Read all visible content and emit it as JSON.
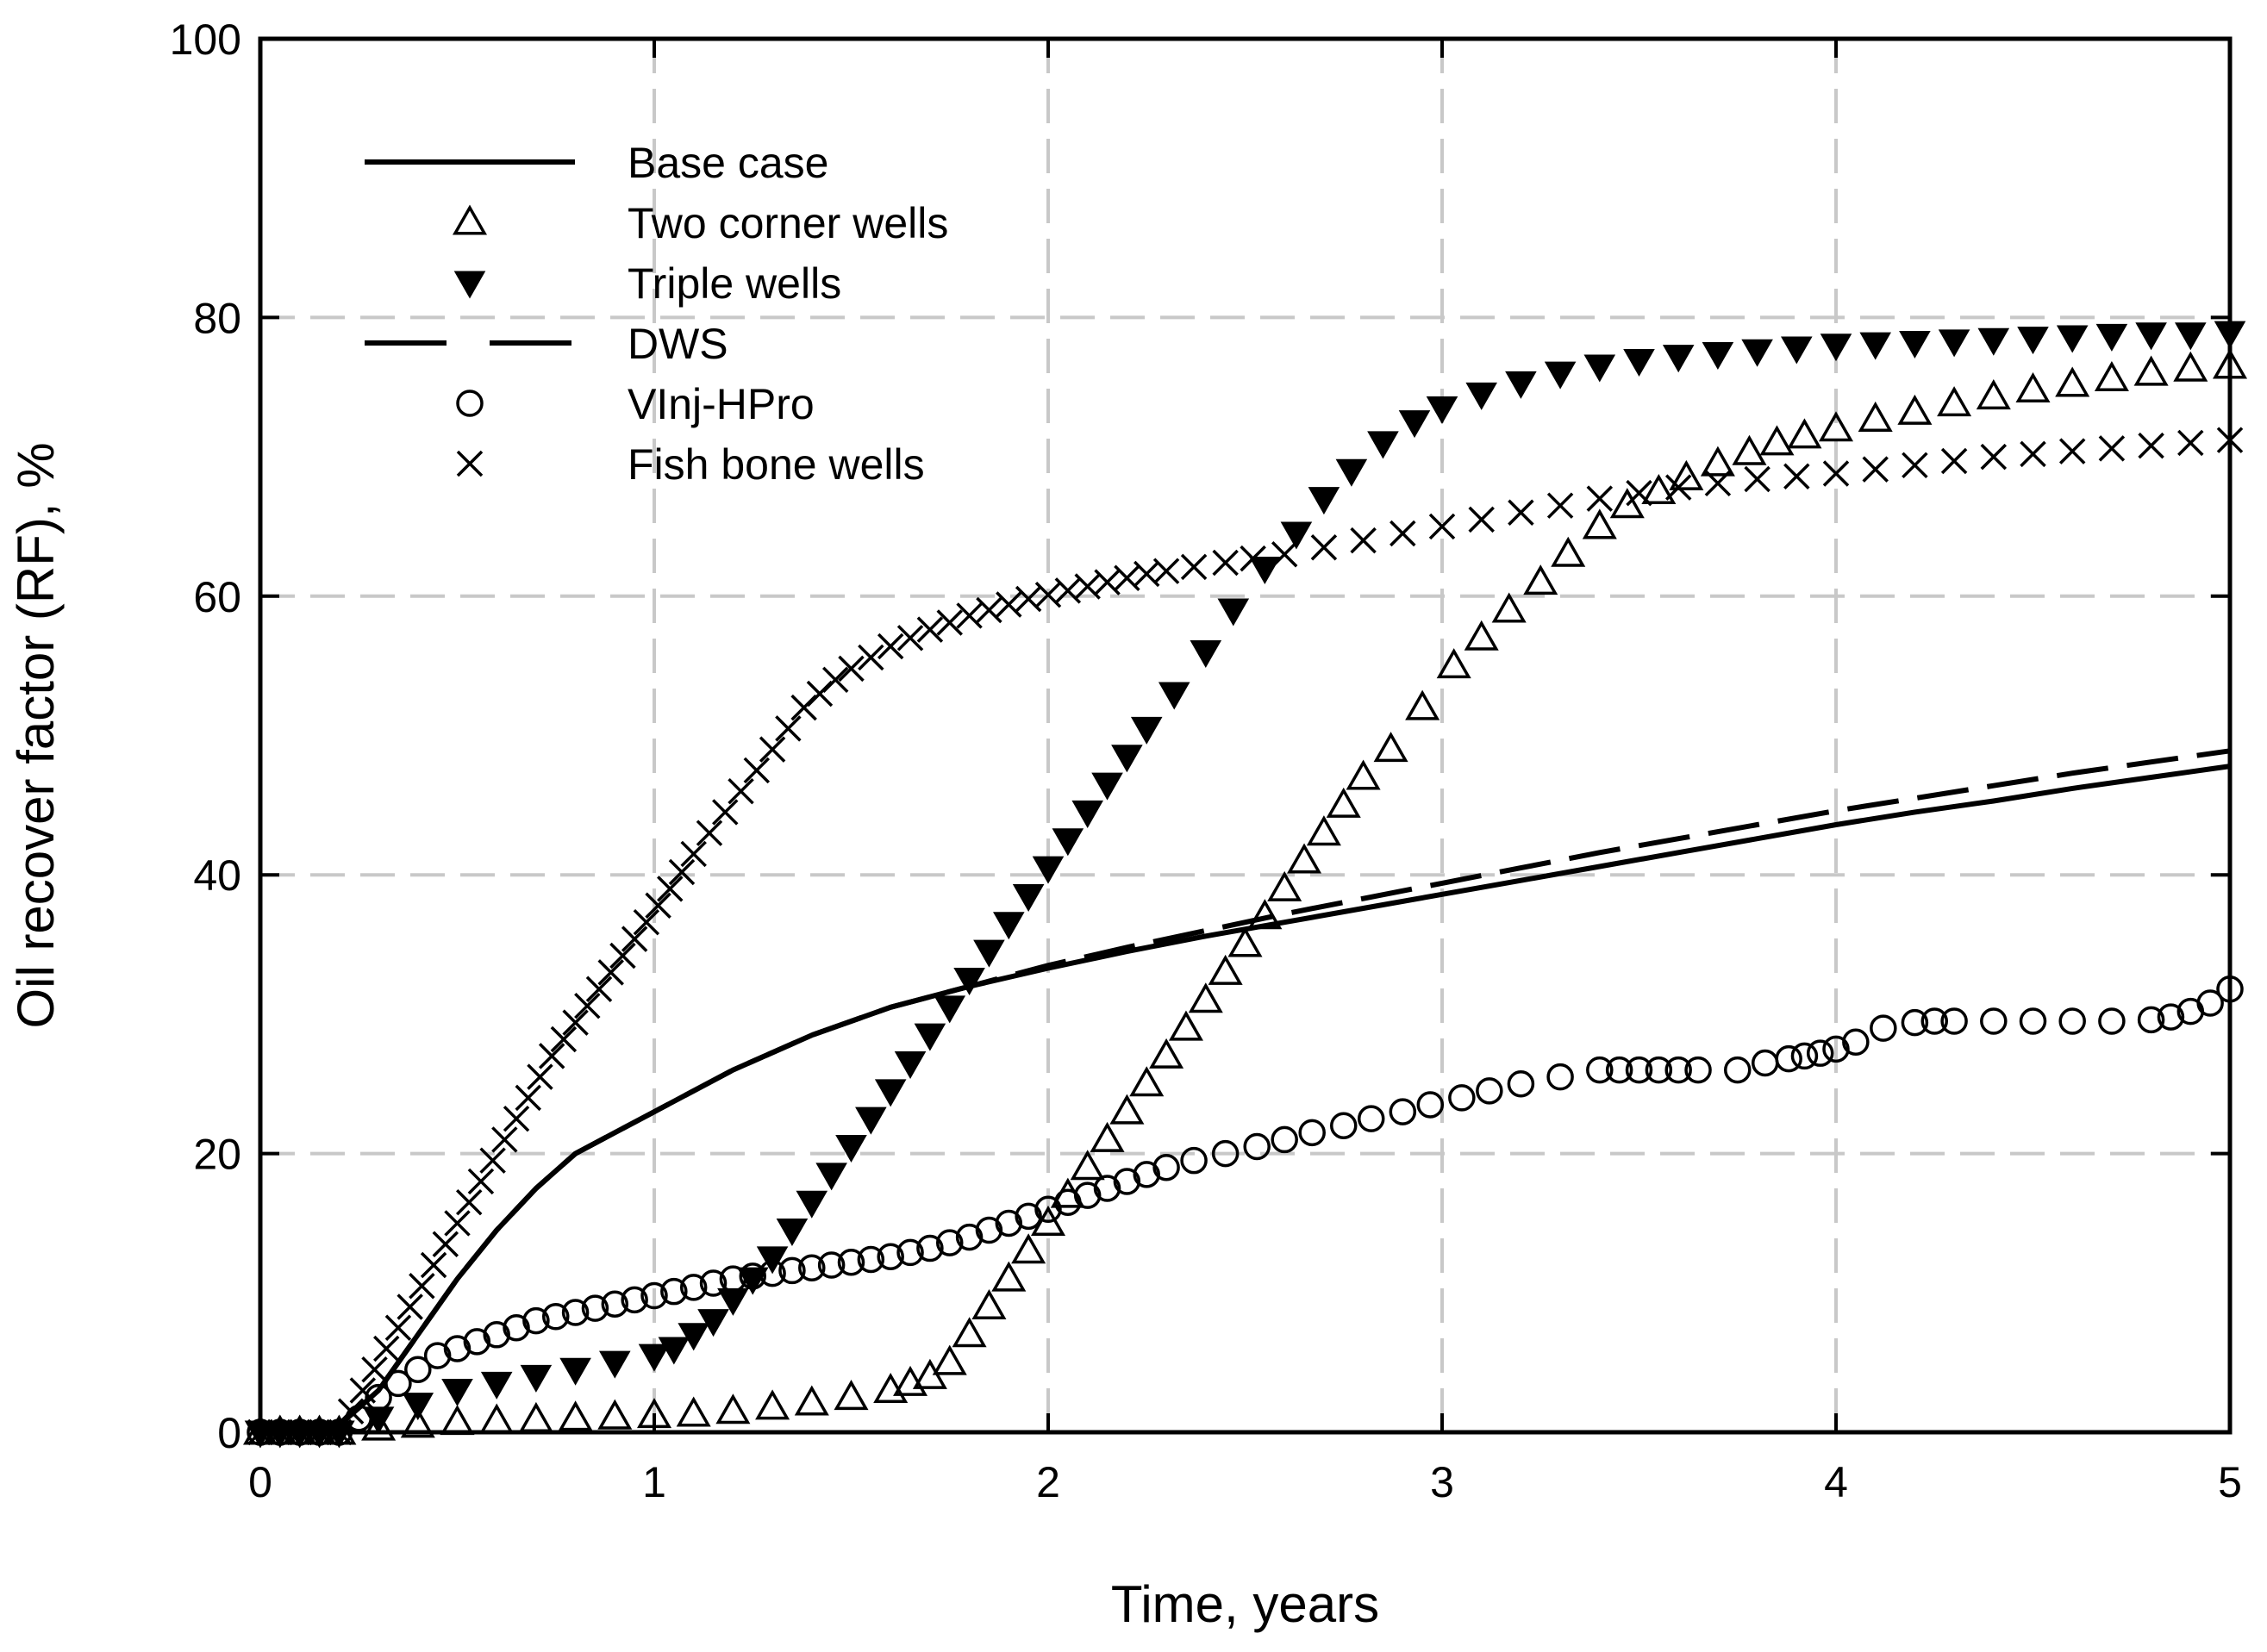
{
  "chart_data": {
    "type": "line",
    "title": "",
    "xlabel": "Time, years",
    "ylabel": "Oil recover factor (RF), %",
    "xlim": [
      0,
      5
    ],
    "ylim": [
      0,
      100
    ],
    "xticks": [
      "0",
      "1",
      "2",
      "3",
      "4",
      "5"
    ],
    "yticks": [
      "0",
      "20",
      "40",
      "60",
      "80",
      "100"
    ],
    "grid": true,
    "legend_position": "top-left",
    "colors": {
      "line": "#000000",
      "grid": "#c8c8c8",
      "background": "#ffffff"
    },
    "series": [
      {
        "name": "Base case",
        "style": "solid",
        "marker": "none",
        "x": [
          0,
          0.1,
          0.2,
          0.3,
          0.4,
          0.5,
          0.6,
          0.7,
          0.8,
          0.9,
          1.0,
          1.2,
          1.4,
          1.6,
          1.8,
          2.0,
          2.2,
          2.4,
          2.6,
          2.8,
          3.0,
          3.2,
          3.4,
          3.6,
          3.8,
          4.0,
          4.2,
          4.4,
          4.6,
          4.8,
          5.0
        ],
        "y": [
          0,
          0,
          0.5,
          3,
          7,
          11,
          14.5,
          17.5,
          20,
          21.5,
          23,
          26,
          28.5,
          30.5,
          32,
          33.3,
          34.5,
          35.6,
          36.6,
          37.6,
          38.6,
          39.6,
          40.6,
          41.6,
          42.6,
          43.6,
          44.5,
          45.3,
          46.2,
          47,
          47.8
        ]
      },
      {
        "name": "Two corner wells",
        "style": "markers",
        "marker": "triangle-open",
        "x": [
          0,
          0.05,
          0.1,
          0.15,
          0.2,
          0.3,
          0.4,
          0.5,
          0.6,
          0.7,
          0.8,
          0.9,
          1.0,
          1.1,
          1.2,
          1.3,
          1.4,
          1.5,
          1.6,
          1.65,
          1.7,
          1.75,
          1.8,
          1.85,
          1.9,
          1.95,
          2.0,
          2.05,
          2.1,
          2.15,
          2.2,
          2.25,
          2.3,
          2.35,
          2.4,
          2.45,
          2.5,
          2.55,
          2.6,
          2.65,
          2.7,
          2.75,
          2.8,
          2.87,
          2.95,
          3.03,
          3.1,
          3.17,
          3.25,
          3.32,
          3.4,
          3.47,
          3.55,
          3.62,
          3.7,
          3.78,
          3.85,
          3.92,
          4.0,
          4.1,
          4.2,
          4.3,
          4.4,
          4.5,
          4.6,
          4.7,
          4.8,
          4.9,
          5.0
        ],
        "y": [
          0,
          0,
          0,
          0,
          0,
          0.3,
          0.5,
          0.7,
          0.8,
          0.9,
          1.0,
          1.1,
          1.2,
          1.3,
          1.5,
          1.8,
          2.1,
          2.5,
          3,
          3.5,
          4,
          5,
          7,
          9,
          11,
          13,
          15,
          17,
          19,
          21,
          23,
          25,
          27,
          29,
          31,
          33,
          35,
          37,
          39,
          41,
          43,
          45,
          47,
          49,
          52,
          55,
          57,
          59,
          61,
          63,
          65,
          66.5,
          67.5,
          68.5,
          69.5,
          70.3,
          71,
          71.5,
          72,
          72.7,
          73.2,
          73.8,
          74.3,
          74.8,
          75.2,
          75.6,
          76,
          76.3,
          76.5
        ]
      },
      {
        "name": "Triple wells",
        "style": "markers",
        "marker": "triangle-down-filled",
        "x": [
          0,
          0.05,
          0.1,
          0.15,
          0.2,
          0.3,
          0.4,
          0.5,
          0.6,
          0.7,
          0.8,
          0.9,
          1.0,
          1.05,
          1.1,
          1.15,
          1.2,
          1.25,
          1.3,
          1.35,
          1.4,
          1.45,
          1.5,
          1.55,
          1.6,
          1.65,
          1.7,
          1.75,
          1.8,
          1.85,
          1.9,
          1.95,
          2.0,
          2.05,
          2.1,
          2.15,
          2.2,
          2.25,
          2.32,
          2.4,
          2.47,
          2.55,
          2.63,
          2.7,
          2.77,
          2.85,
          2.93,
          3.0,
          3.1,
          3.2,
          3.3,
          3.4,
          3.5,
          3.6,
          3.7,
          3.8,
          3.9,
          4.0,
          4.1,
          4.2,
          4.3,
          4.4,
          4.5,
          4.6,
          4.7,
          4.8,
          4.9,
          5.0
        ],
        "y": [
          0,
          0,
          0,
          0,
          0,
          1,
          2,
          3,
          3.5,
          4,
          4.5,
          5,
          5.5,
          6,
          7,
          8,
          9.5,
          11,
          12.5,
          14.5,
          16.5,
          18.5,
          20.5,
          22.5,
          24.5,
          26.5,
          28.5,
          30.5,
          32.5,
          34.5,
          36.5,
          38.5,
          40.5,
          42.5,
          44.5,
          46.5,
          48.5,
          50.5,
          53,
          56,
          59,
          62,
          64.5,
          67,
          69,
          71,
          72.5,
          73.5,
          74.5,
          75.3,
          76,
          76.5,
          76.9,
          77.2,
          77.4,
          77.6,
          77.8,
          78,
          78.1,
          78.2,
          78.3,
          78.4,
          78.5,
          78.6,
          78.7,
          78.8,
          78.8,
          78.9
        ]
      },
      {
        "name": "DWS",
        "style": "dashed",
        "marker": "none",
        "x": [
          0,
          0.1,
          0.2,
          0.3,
          0.4,
          0.5,
          0.6,
          0.7,
          0.8,
          0.9,
          1.0,
          1.2,
          1.4,
          1.6,
          1.8,
          2.0,
          2.2,
          2.4,
          2.6,
          2.8,
          3.0,
          3.2,
          3.4,
          3.6,
          3.8,
          4.0,
          4.2,
          4.4,
          4.6,
          4.8,
          5.0
        ],
        "y": [
          0,
          0,
          0.5,
          3,
          7,
          11,
          14.5,
          17.5,
          20,
          21.5,
          23,
          26,
          28.5,
          30.5,
          32,
          33.5,
          34.8,
          36,
          37.2,
          38.3,
          39.4,
          40.5,
          41.6,
          42.6,
          43.6,
          44.6,
          45.5,
          46.4,
          47.3,
          48.1,
          48.9
        ]
      },
      {
        "name": "VInj-HPro",
        "style": "markers",
        "marker": "circle-open",
        "x": [
          0,
          0.05,
          0.1,
          0.15,
          0.2,
          0.25,
          0.3,
          0.35,
          0.4,
          0.45,
          0.5,
          0.55,
          0.6,
          0.65,
          0.7,
          0.75,
          0.8,
          0.85,
          0.9,
          0.95,
          1.0,
          1.05,
          1.1,
          1.15,
          1.2,
          1.25,
          1.3,
          1.35,
          1.4,
          1.45,
          1.5,
          1.55,
          1.6,
          1.65,
          1.7,
          1.75,
          1.8,
          1.85,
          1.9,
          1.95,
          2.0,
          2.05,
          2.1,
          2.15,
          2.2,
          2.25,
          2.3,
          2.37,
          2.45,
          2.53,
          2.6,
          2.67,
          2.75,
          2.82,
          2.9,
          2.97,
          3.05,
          3.12,
          3.2,
          3.3,
          3.4,
          3.45,
          3.5,
          3.55,
          3.6,
          3.65,
          3.75,
          3.82,
          3.88,
          3.92,
          3.96,
          4.0,
          4.05,
          4.12,
          4.2,
          4.25,
          4.3,
          4.4,
          4.5,
          4.6,
          4.7,
          4.8,
          4.85,
          4.9,
          4.95,
          5.0
        ],
        "y": [
          0,
          0,
          0,
          0,
          0,
          1,
          2.5,
          3.5,
          4.5,
          5.5,
          6,
          6.5,
          7,
          7.5,
          8,
          8.3,
          8.6,
          8.9,
          9.2,
          9.5,
          9.8,
          10.1,
          10.4,
          10.7,
          11,
          11.2,
          11.4,
          11.6,
          11.8,
          12,
          12.2,
          12.4,
          12.6,
          12.9,
          13.2,
          13.6,
          14,
          14.5,
          15,
          15.5,
          16,
          16.5,
          17,
          17.5,
          18,
          18.5,
          19,
          19.5,
          20,
          20.5,
          21,
          21.5,
          22,
          22.5,
          23,
          23.5,
          24,
          24.5,
          25,
          25.5,
          26,
          26,
          26,
          26,
          26,
          26,
          26,
          26.5,
          26.8,
          27,
          27.2,
          27.5,
          28,
          29,
          29.4,
          29.5,
          29.5,
          29.5,
          29.5,
          29.5,
          29.5,
          29.6,
          29.8,
          30.2,
          30.8,
          31.8
        ]
      },
      {
        "name": "Fish bone wells",
        "style": "markers",
        "marker": "x",
        "x": [
          0,
          0.05,
          0.1,
          0.15,
          0.2,
          0.23,
          0.26,
          0.29,
          0.32,
          0.35,
          0.38,
          0.41,
          0.44,
          0.47,
          0.5,
          0.53,
          0.56,
          0.59,
          0.62,
          0.65,
          0.68,
          0.71,
          0.74,
          0.77,
          0.8,
          0.83,
          0.86,
          0.89,
          0.92,
          0.95,
          0.98,
          1.01,
          1.04,
          1.07,
          1.1,
          1.14,
          1.18,
          1.22,
          1.26,
          1.3,
          1.34,
          1.38,
          1.42,
          1.46,
          1.5,
          1.55,
          1.6,
          1.65,
          1.7,
          1.75,
          1.8,
          1.85,
          1.9,
          1.95,
          2.0,
          2.05,
          2.1,
          2.15,
          2.2,
          2.25,
          2.3,
          2.37,
          2.45,
          2.52,
          2.6,
          2.7,
          2.8,
          2.9,
          3.0,
          3.1,
          3.2,
          3.3,
          3.4,
          3.5,
          3.6,
          3.7,
          3.8,
          3.9,
          4.0,
          4.1,
          4.2,
          4.3,
          4.4,
          4.5,
          4.6,
          4.7,
          4.8,
          4.9,
          5.0
        ],
        "y": [
          0,
          0,
          0,
          0,
          0,
          1.5,
          3,
          4.5,
          6,
          7.5,
          9,
          10.5,
          12,
          13.5,
          15,
          16.5,
          18,
          19.5,
          21,
          22.5,
          24,
          25.5,
          27,
          28.2,
          29.4,
          30.6,
          31.8,
          33,
          34.2,
          35.4,
          36.6,
          37.8,
          39,
          40.2,
          41.5,
          43,
          44.5,
          46,
          47.5,
          49,
          50.5,
          52,
          53,
          54,
          54.8,
          55.6,
          56.4,
          57,
          57.6,
          58.1,
          58.6,
          59,
          59.4,
          59.8,
          60.1,
          60.4,
          60.7,
          61,
          61.3,
          61.6,
          61.8,
          62.1,
          62.4,
          62.7,
          63,
          63.5,
          64,
          64.5,
          65,
          65.5,
          66,
          66.5,
          67,
          67.4,
          67.8,
          68.1,
          68.4,
          68.6,
          68.8,
          69.1,
          69.4,
          69.7,
          70,
          70.2,
          70.4,
          70.6,
          70.8,
          71,
          71.2
        ]
      }
    ]
  }
}
